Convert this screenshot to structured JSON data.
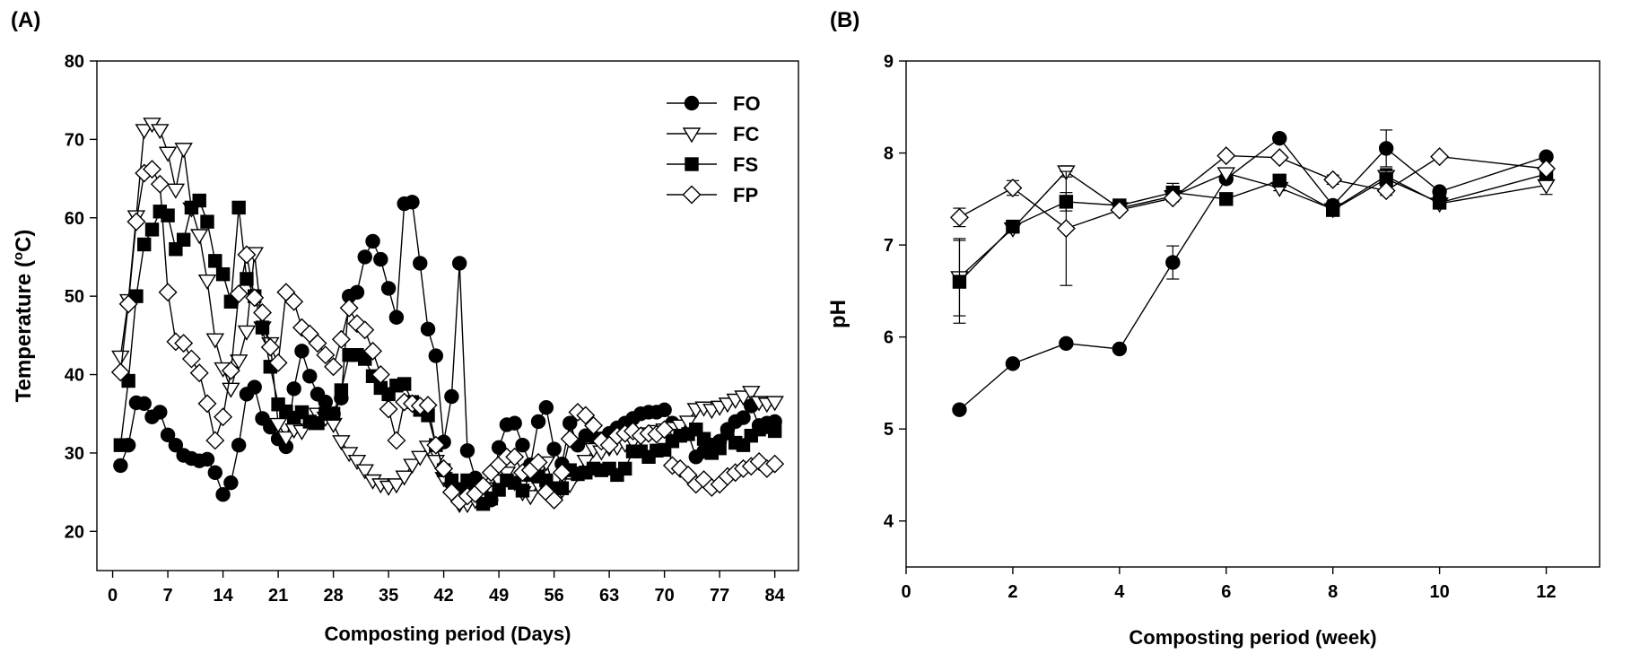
{
  "chart_data": [
    {
      "panel_label": "(A)",
      "type": "line",
      "xlabel": "Composting period (Days)",
      "ylabel": "Temperature (oC)",
      "ylabel_parts": [
        "Temperature (",
        "o",
        "C)"
      ],
      "xlim": [
        -2,
        87
      ],
      "ylim": [
        15,
        80
      ],
      "xticks": [
        0,
        7,
        14,
        21,
        28,
        35,
        42,
        49,
        56,
        63,
        70,
        77,
        84
      ],
      "yticks": [
        20,
        30,
        40,
        50,
        60,
        70,
        80
      ],
      "legend": {
        "position": "top-right",
        "entries": [
          "FO",
          "FC",
          "FS",
          "FP"
        ]
      },
      "series": [
        {
          "name": "FO",
          "marker": "circle-filled",
          "x": [
            1,
            2,
            3,
            4,
            5,
            6,
            7,
            8,
            9,
            10,
            11,
            12,
            13,
            14,
            15,
            16,
            17,
            18,
            19,
            20,
            21,
            22,
            23,
            24,
            25,
            26,
            27,
            28,
            29,
            30,
            31,
            32,
            33,
            34,
            35,
            36,
            37,
            38,
            39,
            40,
            41,
            42,
            43,
            44,
            45,
            46,
            47,
            48,
            49,
            50,
            51,
            52,
            53,
            54,
            55,
            56,
            57,
            58,
            59,
            60,
            61,
            62,
            63,
            64,
            65,
            66,
            67,
            68,
            69,
            70,
            71,
            72,
            73,
            74,
            75,
            76,
            77,
            78,
            79,
            80,
            81,
            82,
            83,
            84
          ],
          "y": [
            28.4,
            31,
            36.4,
            36.3,
            34.6,
            35.2,
            32.3,
            31,
            29.7,
            29.3,
            29,
            29.2,
            27.5,
            24.7,
            26.2,
            31,
            37.5,
            38.4,
            34.4,
            33.3,
            31.8,
            30.8,
            38.2,
            43,
            39.8,
            37.5,
            36.5,
            35,
            37,
            50,
            50.5,
            55,
            57,
            54.7,
            51,
            47.3,
            61.8,
            62,
            54.2,
            45.8,
            42.4,
            31.4,
            37.2,
            54.2,
            30.3,
            26.8,
            25.5,
            24,
            30.7,
            33.6,
            33.8,
            31,
            28.5,
            34,
            35.8,
            30.5,
            28.6,
            33.8,
            31,
            32.2,
            32,
            31.8,
            32.5,
            33.2,
            33.8,
            34.4,
            35,
            35.2,
            35.2,
            35.5,
            33.8,
            33,
            32.5,
            29.5,
            30.2,
            31,
            31.5,
            33,
            34,
            34.5,
            36,
            33.5,
            33.8,
            34
          ]
        },
        {
          "name": "FC",
          "marker": "triangle-down-open",
          "x": [
            1,
            2,
            3,
            4,
            5,
            6,
            7,
            8,
            9,
            10,
            11,
            12,
            13,
            14,
            15,
            16,
            17,
            18,
            19,
            20,
            21,
            22,
            23,
            24,
            25,
            26,
            27,
            28,
            29,
            30,
            31,
            32,
            33,
            34,
            35,
            36,
            37,
            38,
            39,
            40,
            41,
            42,
            43,
            44,
            45,
            46,
            47,
            48,
            49,
            50,
            51,
            52,
            53,
            54,
            55,
            56,
            57,
            58,
            59,
            60,
            61,
            62,
            63,
            64,
            65,
            66,
            67,
            68,
            69,
            70,
            71,
            72,
            73,
            74,
            75,
            76,
            77,
            78,
            79,
            80,
            81,
            82,
            83,
            84
          ],
          "y": [
            42.3,
            49.5,
            60.2,
            71.2,
            72,
            71.2,
            68.3,
            63.6,
            68.8,
            61.2,
            57.8,
            52,
            44.5,
            40.8,
            38.2,
            41.8,
            45.5,
            55.5,
            46,
            44,
            33.7,
            32,
            33,
            32.8,
            34,
            35,
            34.5,
            33.7,
            31.5,
            30,
            29,
            27.8,
            26.5,
            26,
            25.7,
            26,
            27,
            28.5,
            29.5,
            30.8,
            29,
            26.8,
            25.5,
            23.5,
            23.5,
            24,
            24.5,
            25.5,
            26.5,
            27.5,
            26.3,
            25,
            24.5,
            26,
            28.8,
            25.5,
            25.3,
            26,
            27.5,
            29,
            30.5,
            30.2,
            30.7,
            30.8,
            31.2,
            31.5,
            32,
            32.5,
            32.8,
            33,
            33.2,
            33.5,
            34,
            35.6,
            35.8,
            35.5,
            35.9,
            36.3,
            36.8,
            37.2,
            37.8,
            36.5,
            36.3,
            36.5
          ]
        },
        {
          "name": "FS",
          "marker": "square-filled",
          "x": [
            1,
            2,
            3,
            4,
            5,
            6,
            7,
            8,
            9,
            10,
            11,
            12,
            13,
            14,
            15,
            16,
            17,
            18,
            19,
            20,
            21,
            22,
            23,
            24,
            25,
            26,
            27,
            28,
            29,
            30,
            31,
            32,
            33,
            34,
            35,
            36,
            37,
            38,
            39,
            40,
            41,
            42,
            43,
            44,
            45,
            46,
            47,
            48,
            49,
            50,
            51,
            52,
            53,
            54,
            55,
            56,
            57,
            58,
            59,
            60,
            61,
            62,
            63,
            64,
            65,
            66,
            67,
            68,
            69,
            70,
            71,
            72,
            73,
            74,
            75,
            76,
            77,
            78,
            79,
            80,
            81,
            82,
            83,
            84
          ],
          "y": [
            31,
            39.2,
            50,
            56.6,
            58.5,
            60.8,
            60.3,
            56,
            57.2,
            61.3,
            62.2,
            59.5,
            54.5,
            52.8,
            49.3,
            61.3,
            52.2,
            50,
            46,
            41,
            36.2,
            35.3,
            34.5,
            35.2,
            34,
            33.8,
            35,
            35,
            38,
            42.5,
            42.5,
            42,
            39.8,
            38.3,
            37.5,
            38.6,
            38.8,
            36.5,
            35.5,
            34.8,
            31,
            27.8,
            26.5,
            25.3,
            26.5,
            25.2,
            23.5,
            24.2,
            25.3,
            26.5,
            26.2,
            25.2,
            27.2,
            27,
            26.5,
            25.5,
            25.5,
            27.8,
            27.3,
            27.5,
            28,
            27.8,
            28,
            27.2,
            28,
            30.2,
            30.2,
            29.5,
            30.3,
            30.4,
            31.5,
            32.2,
            32.4,
            33,
            31.8,
            30,
            30.6,
            32.5,
            31.3,
            31,
            32.2,
            33,
            33.3,
            32.8
          ]
        },
        {
          "name": "FP",
          "marker": "diamond-open",
          "x": [
            1,
            2,
            3,
            4,
            5,
            6,
            7,
            8,
            9,
            10,
            11,
            12,
            13,
            14,
            15,
            16,
            17,
            18,
            19,
            20,
            21,
            22,
            23,
            24,
            25,
            26,
            27,
            28,
            29,
            30,
            31,
            32,
            33,
            34,
            35,
            36,
            37,
            38,
            39,
            40,
            41,
            42,
            43,
            44,
            45,
            46,
            47,
            48,
            49,
            50,
            51,
            52,
            53,
            54,
            55,
            56,
            57,
            58,
            59,
            60,
            61,
            62,
            63,
            64,
            65,
            66,
            67,
            68,
            69,
            70,
            71,
            72,
            73,
            74,
            75,
            76,
            77,
            78,
            79,
            80,
            81,
            82,
            83,
            84
          ],
          "y": [
            40.3,
            49,
            59.5,
            65.7,
            66.2,
            64.3,
            50.5,
            44.2,
            44,
            42,
            40.2,
            36.3,
            31.6,
            34.6,
            40.5,
            50.3,
            55.3,
            49.8,
            47.9,
            43.5,
            41.5,
            50.5,
            49.3,
            46,
            45.2,
            44,
            42.5,
            41,
            44.5,
            48.5,
            46.5,
            45.7,
            43,
            40,
            35.6,
            31.6,
            36.5,
            36.3,
            36,
            36.1,
            31,
            28,
            25,
            23.8,
            24.5,
            24.8,
            25.8,
            27.5,
            28.5,
            29.5,
            29.5,
            27.5,
            27.8,
            28.8,
            25,
            24,
            27.5,
            31.8,
            35.2,
            34.8,
            33.5,
            31.5,
            31,
            32.2,
            32.5,
            32.8,
            32.2,
            32.5,
            32.4,
            33,
            28.4,
            28,
            27.2,
            26,
            26.6,
            25.6,
            26,
            27,
            27.5,
            28,
            28.3,
            28.9,
            28,
            28.6
          ]
        }
      ]
    },
    {
      "panel_label": "(B)",
      "type": "line",
      "xlabel": "Composting period (week)",
      "ylabel": "pH",
      "xlim": [
        0,
        13
      ],
      "ylim": [
        3.5,
        9
      ],
      "xticks": [
        0,
        2,
        4,
        6,
        8,
        10,
        12
      ],
      "yticks": [
        4,
        5,
        6,
        7,
        8,
        9
      ],
      "series": [
        {
          "name": "FO",
          "marker": "circle-filled",
          "x": [
            1,
            2,
            3,
            4,
            5,
            6,
            7,
            8,
            9,
            10,
            12
          ],
          "y": [
            5.21,
            5.71,
            5.93,
            5.87,
            6.81,
            7.72,
            8.16,
            7.43,
            8.05,
            7.58,
            7.96
          ],
          "err": [
            0.03,
            0.03,
            0.03,
            0.03,
            0.18,
            0,
            0.03,
            0.05,
            0.2,
            0,
            0.03
          ]
        },
        {
          "name": "FC",
          "marker": "triangle-down-open",
          "x": [
            1,
            2,
            3,
            4,
            5,
            6,
            7,
            8,
            9,
            10,
            12
          ],
          "y": [
            6.65,
            7.18,
            7.8,
            7.4,
            7.53,
            7.78,
            7.62,
            7.39,
            7.75,
            7.45,
            7.65
          ],
          "err": [
            0.42,
            0.05,
            0.06,
            0.03,
            0.05,
            0,
            0.03,
            0.05,
            0.08,
            0,
            0.1
          ]
        },
        {
          "name": "FS",
          "marker": "square-filled",
          "x": [
            1,
            2,
            3,
            4,
            5,
            6,
            7,
            8,
            9,
            10,
            12
          ],
          "y": [
            6.6,
            7.2,
            7.47,
            7.43,
            7.57,
            7.5,
            7.7,
            7.38,
            7.72,
            7.46,
            7.77
          ],
          "err": [
            0.45,
            0.05,
            0.1,
            0.03,
            0.1,
            0,
            0.03,
            0.05,
            0.1,
            0,
            0.03
          ]
        },
        {
          "name": "FP",
          "marker": "diamond-open",
          "x": [
            1,
            2,
            3,
            4,
            5,
            6,
            7,
            8,
            9,
            10,
            12
          ],
          "y": [
            7.3,
            7.62,
            7.18,
            7.38,
            7.51,
            7.97,
            7.95,
            7.71,
            7.59,
            7.96,
            7.83
          ],
          "err": [
            0.1,
            0.08,
            0.62,
            0.03,
            0.03,
            0,
            0.03,
            0.05,
            0.05,
            0,
            0.03
          ]
        }
      ]
    }
  ]
}
